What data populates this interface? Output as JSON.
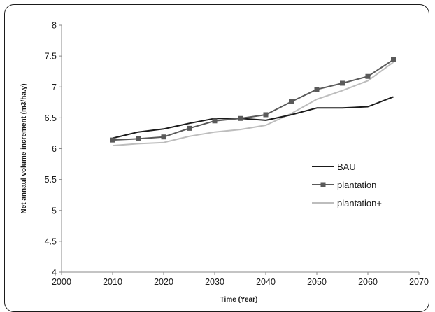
{
  "chart_data": {
    "type": "line",
    "xlabel": "Time (Year)",
    "ylabel": "Net annaul volume increment (m3/ha.y)",
    "xlim": [
      2000,
      2070
    ],
    "ylim": [
      4,
      8
    ],
    "x_ticks": [
      "2000",
      "2010",
      "2020",
      "2030",
      "2040",
      "2050",
      "2060",
      "2070"
    ],
    "y_ticks": [
      "4",
      "4.5",
      "5",
      "5.5",
      "6",
      "6.5",
      "7",
      "7.5",
      "8"
    ],
    "grid": false,
    "legend_position": "right",
    "x": [
      2010,
      2015,
      2020,
      2025,
      2030,
      2035,
      2040,
      2045,
      2050,
      2055,
      2060,
      2065
    ],
    "series": [
      {
        "name": "BAU",
        "color": "#1a1a1a",
        "marker": "none",
        "values": [
          6.17,
          6.27,
          6.32,
          6.41,
          6.49,
          6.49,
          6.46,
          6.55,
          6.66,
          6.66,
          6.68,
          6.84
        ]
      },
      {
        "name": "plantation",
        "color": "#5a5a5a",
        "marker": "square",
        "values": [
          6.14,
          6.16,
          6.19,
          6.33,
          6.45,
          6.49,
          6.55,
          6.76,
          6.96,
          7.06,
          7.17,
          7.44
        ]
      },
      {
        "name": "plantation+",
        "color": "#bdbdbd",
        "marker": "none",
        "values": [
          6.05,
          6.08,
          6.1,
          6.2,
          6.27,
          6.31,
          6.38,
          6.57,
          6.8,
          6.94,
          7.1,
          7.4
        ]
      }
    ]
  }
}
